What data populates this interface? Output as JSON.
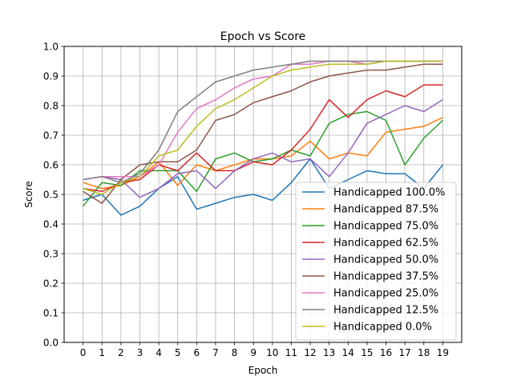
{
  "chart_data": {
    "type": "line",
    "title": "Epoch vs Score",
    "xlabel": "Epoch",
    "ylabel": "Score",
    "x": [
      0,
      1,
      2,
      3,
      4,
      5,
      6,
      7,
      8,
      9,
      10,
      11,
      12,
      13,
      14,
      15,
      16,
      17,
      18,
      19
    ],
    "xlim": [
      -1,
      20
    ],
    "ylim": [
      0.0,
      1.0
    ],
    "xticks": [
      "0",
      "1",
      "2",
      "3",
      "4",
      "5",
      "6",
      "7",
      "8",
      "9",
      "10",
      "11",
      "12",
      "13",
      "14",
      "15",
      "16",
      "17",
      "18",
      "19"
    ],
    "yticks": [
      "0.0",
      "0.1",
      "0.2",
      "0.3",
      "0.4",
      "0.5",
      "0.6",
      "0.7",
      "0.8",
      "0.9",
      "1.0"
    ],
    "grid": true,
    "legend_position": "lower-right",
    "series": [
      {
        "name": "Handicapped 100.0%",
        "color": "#1f77b4",
        "values": [
          0.48,
          0.5,
          0.43,
          0.46,
          0.52,
          0.56,
          0.45,
          0.47,
          0.49,
          0.5,
          0.48,
          0.54,
          0.62,
          0.52,
          0.55,
          0.58,
          0.57,
          0.57,
          0.52,
          0.6
        ]
      },
      {
        "name": "Handicapped 87.5%",
        "color": "#ff7f0e",
        "values": [
          0.54,
          0.52,
          0.53,
          0.56,
          0.61,
          0.53,
          0.6,
          0.58,
          0.6,
          0.62,
          0.62,
          0.63,
          0.68,
          0.62,
          0.64,
          0.63,
          0.71,
          0.72,
          0.73,
          0.76
        ]
      },
      {
        "name": "Handicapped 75.0%",
        "color": "#2ca02c",
        "values": [
          0.46,
          0.54,
          0.53,
          0.58,
          0.58,
          0.58,
          0.51,
          0.62,
          0.64,
          0.61,
          0.62,
          0.65,
          0.63,
          0.74,
          0.77,
          0.78,
          0.75,
          0.6,
          0.69,
          0.75
        ]
      },
      {
        "name": "Handicapped 62.5%",
        "color": "#d62728",
        "values": [
          0.52,
          0.51,
          0.54,
          0.55,
          0.6,
          0.58,
          0.64,
          0.58,
          0.58,
          0.61,
          0.6,
          0.65,
          0.72,
          0.82,
          0.76,
          0.82,
          0.85,
          0.83,
          0.87,
          0.87
        ]
      },
      {
        "name": "Handicapped 50.0%",
        "color": "#9467bd",
        "values": [
          0.55,
          0.56,
          0.55,
          0.49,
          0.52,
          0.57,
          0.58,
          0.52,
          0.58,
          0.62,
          0.64,
          0.61,
          0.62,
          0.56,
          0.64,
          0.74,
          0.77,
          0.8,
          0.78,
          0.82
        ]
      },
      {
        "name": "Handicapped 37.5%",
        "color": "#8c564b",
        "values": [
          0.51,
          0.47,
          0.55,
          0.6,
          0.61,
          0.61,
          0.65,
          0.75,
          0.77,
          0.81,
          0.83,
          0.85,
          0.88,
          0.9,
          0.91,
          0.92,
          0.92,
          0.93,
          0.94,
          0.94
        ]
      },
      {
        "name": "Handicapped 25.0%",
        "color": "#e377c2",
        "values": [
          0.55,
          0.56,
          0.56,
          0.56,
          0.6,
          0.71,
          0.79,
          0.82,
          0.86,
          0.89,
          0.9,
          0.94,
          0.94,
          0.95,
          0.95,
          0.94,
          0.95,
          0.95,
          0.95,
          0.95
        ]
      },
      {
        "name": "Handicapped 12.5%",
        "color": "#7f7f7f",
        "values": [
          0.55,
          0.56,
          0.54,
          0.57,
          0.65,
          0.78,
          0.83,
          0.88,
          0.9,
          0.92,
          0.93,
          0.94,
          0.95,
          0.95,
          0.95,
          0.95,
          0.95,
          0.95,
          0.95,
          0.95
        ]
      },
      {
        "name": "Handicapped 0.0%",
        "color": "#bcbd22",
        "values": [
          0.52,
          0.5,
          0.54,
          0.56,
          0.63,
          0.65,
          0.73,
          0.79,
          0.82,
          0.86,
          0.9,
          0.92,
          0.93,
          0.94,
          0.94,
          0.94,
          0.95,
          0.95,
          0.95,
          0.95
        ]
      }
    ]
  }
}
